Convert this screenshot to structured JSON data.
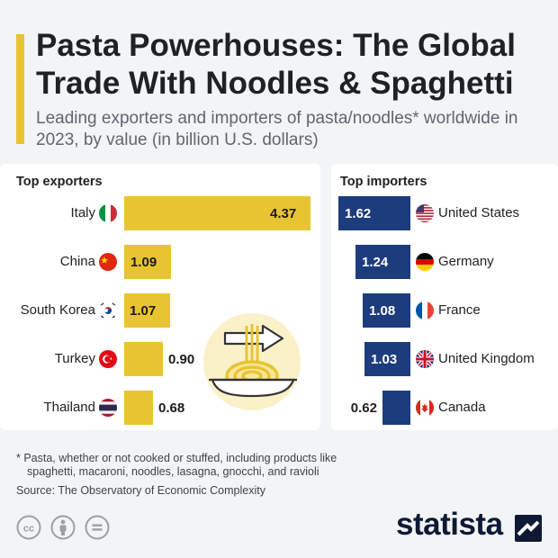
{
  "header": {
    "title": "Pasta Powerhouses: The Global Trade With Noodles & Spaghetti",
    "subtitle": "Leading exporters and importers of pasta/noodles* worldwide in 2023, by value (in billion U.S. dollars)"
  },
  "chart_data": [
    {
      "type": "bar",
      "title": "Top exporters",
      "orientation": "horizontal",
      "categories": [
        "Italy",
        "China",
        "South Korea",
        "Turkey",
        "Thailand"
      ],
      "values": [
        4.37,
        1.09,
        1.07,
        0.9,
        0.68
      ],
      "value_labels": [
        "4.37",
        "1.09",
        "1.07",
        "0.90",
        "0.68"
      ],
      "color": "#e8c433"
    },
    {
      "type": "bar",
      "title": "Top importers",
      "orientation": "horizontal",
      "direction": "right-to-left",
      "categories": [
        "United States",
        "Germany",
        "France",
        "United Kingdom",
        "Canada"
      ],
      "values": [
        1.62,
        1.24,
        1.08,
        1.03,
        0.62
      ],
      "value_labels": [
        "1.62",
        "1.24",
        "1.08",
        "1.03",
        "0.62"
      ],
      "color": "#1d3c7e"
    }
  ],
  "flags": {
    "exporters": [
      "italy-flag",
      "china-flag",
      "south-korea-flag",
      "turkey-flag",
      "thailand-flag"
    ],
    "importers": [
      "united-states-flag",
      "germany-flag",
      "france-flag",
      "united-kingdom-flag",
      "canada-flag"
    ]
  },
  "illustration": "noodle-bowl-with-arrow",
  "footer": {
    "footnote_line1": "* Pasta, whether or not cooked or stuffed, including products like",
    "footnote_line2": "spaghetti, macaroni, noodles, lasagna, gnocchi, and ravioli",
    "source": "Source: The Observatory of Economic Complexity",
    "license_icons": [
      "cc-icon",
      "attribution-icon",
      "no-derivatives-icon"
    ],
    "logo": "statista"
  }
}
